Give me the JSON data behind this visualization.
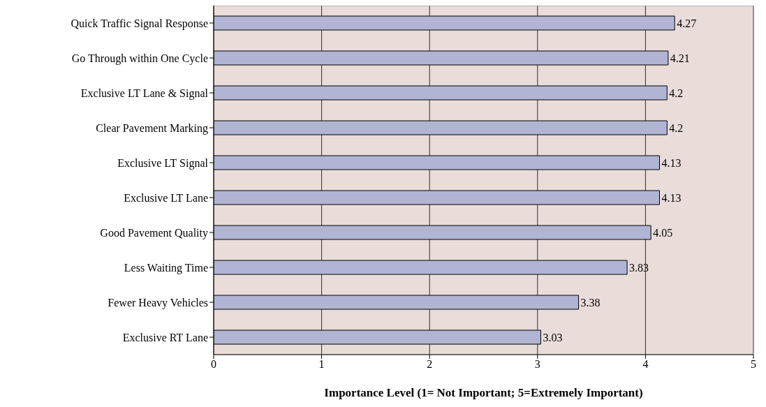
{
  "chart_data": {
    "type": "bar",
    "orientation": "horizontal",
    "xlabel": "Importance Level (1= Not Important; 5=Extremely Important)",
    "categories": [
      "Quick Traffic Signal Response",
      "Go Through within One Cycle",
      "Exclusive LT Lane & Signal",
      "Clear Pavement Marking",
      "Exclusive LT Signal ",
      "Exclusive LT Lane ",
      "Good Pavement Quality ",
      "Less Waiting Time ",
      "Fewer Heavy Vehicles ",
      "Exclusive RT Lane "
    ],
    "values": [
      4.27,
      4.21,
      4.2,
      4.2,
      4.13,
      4.13,
      4.05,
      3.83,
      3.38,
      3.03
    ],
    "color": "#b1b5d3",
    "xlim": [
      0,
      5
    ],
    "xticks": [
      0,
      1,
      2,
      3,
      4,
      5
    ],
    "grid": "x",
    "data_labels": true
  }
}
